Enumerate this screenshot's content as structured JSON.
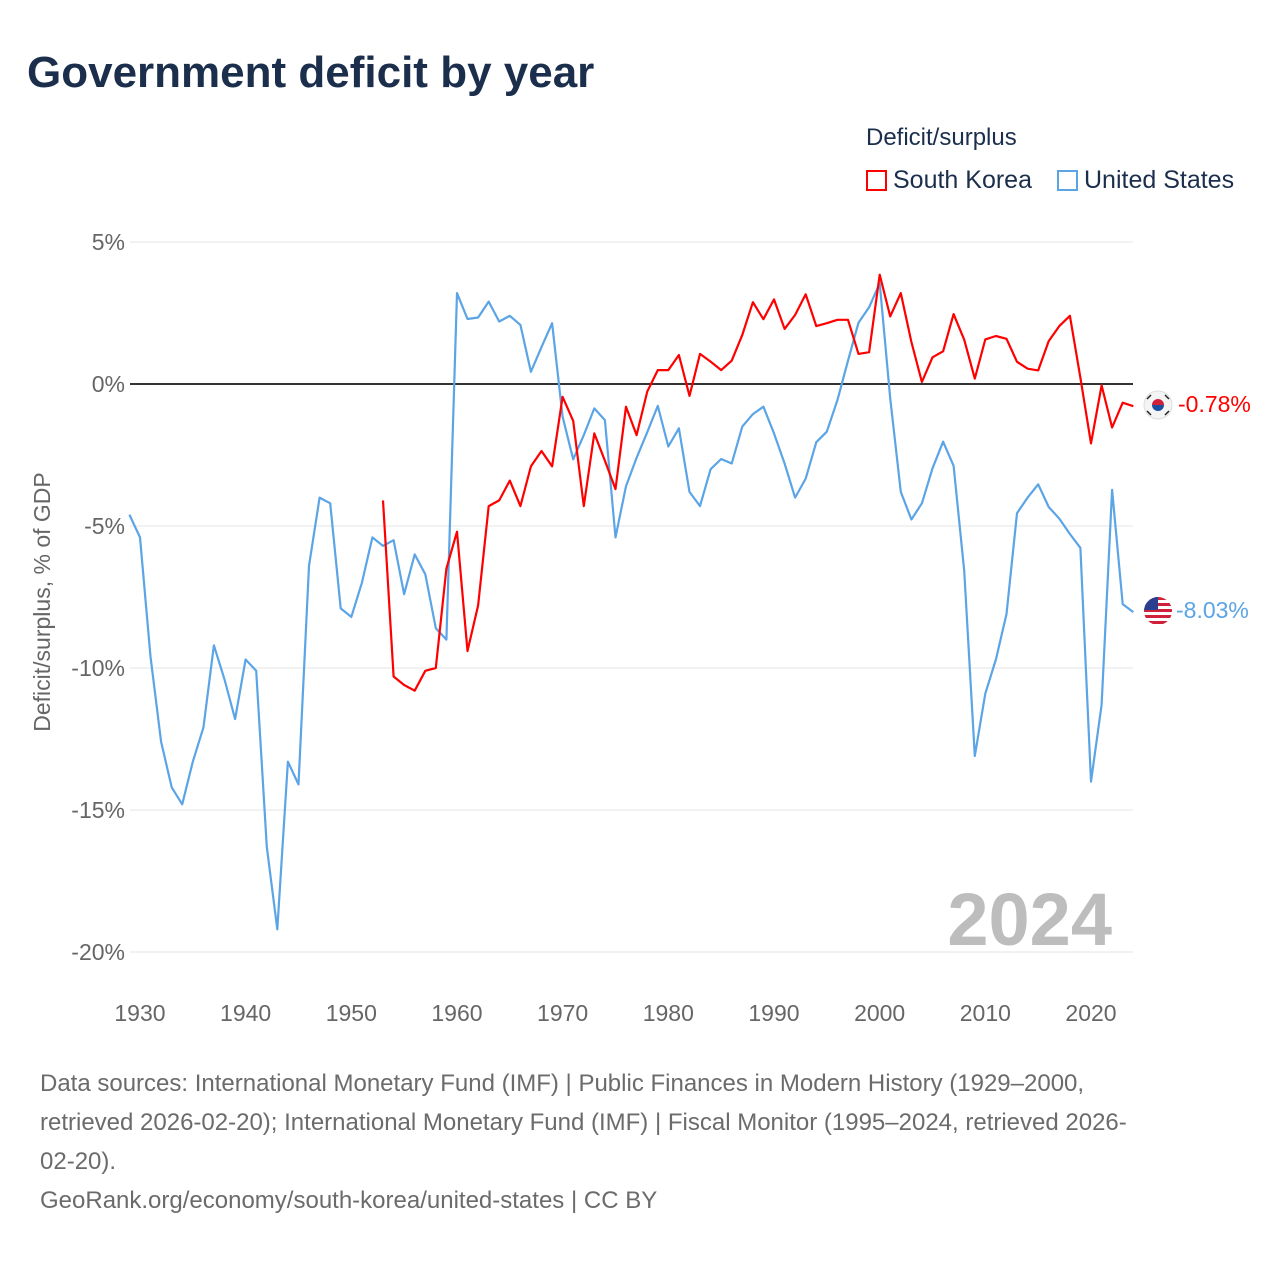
{
  "title": "Government deficit by year",
  "legend": {
    "title": "Deficit/surplus",
    "items": [
      {
        "label": "South Korea",
        "color": "#ff0000"
      },
      {
        "label": "United States",
        "color": "#5ba4e6"
      }
    ]
  },
  "year_watermark": "2024",
  "end_labels": [
    "-0.78%",
    "-8.03%"
  ],
  "footer": {
    "lines": [
      "Data sources: International Monetary Fund (IMF) | Public Finances in Modern History (1929–2000,",
      "retrieved 2026-02-20); International Monetary Fund (IMF) | Fiscal Monitor (1995–2024, retrieved 2026-",
      "02-20).",
      "GeoRank.org/economy/south-korea/united-states | CC BY"
    ]
  },
  "chart_data": {
    "type": "line",
    "title": "Government deficit by year",
    "xlabel": "",
    "ylabel": "Deficit/surplus, % of GDP",
    "xlim": [
      1929,
      2024
    ],
    "ylim": [
      -20,
      5
    ],
    "xticks": [
      1930,
      1940,
      1950,
      1960,
      1970,
      1980,
      1990,
      2000,
      2010,
      2020
    ],
    "xtick_labels": [
      "1930",
      "1940",
      "1950",
      "1960",
      "1970",
      "1980",
      "1990",
      "2000",
      "2010",
      "2020"
    ],
    "yticks": [
      5,
      0,
      -5,
      -10,
      -15,
      -20
    ],
    "ytick_labels": [
      "5%",
      "0%",
      "-5%",
      "-10%",
      "-15%",
      "-20%"
    ],
    "grid": true,
    "legend_position": "top-right",
    "series": [
      {
        "name": "South Korea",
        "color": "#ff0000",
        "start_year": 1953,
        "values": [
          -4.1,
          -10.3,
          -10.6,
          -10.8,
          -10.1,
          -10.0,
          -6.5,
          -5.2,
          -9.4,
          -7.8,
          -4.3,
          -4.1,
          -3.4,
          -4.3,
          -2.9,
          -2.36,
          -2.9,
          -0.45,
          -1.3,
          -4.3,
          -1.74,
          -2.7,
          -3.7,
          -0.8,
          -1.8,
          -0.27,
          0.49,
          0.49,
          1.02,
          -0.42,
          1.06,
          0.79,
          0.49,
          0.82,
          1.73,
          2.88,
          2.28,
          2.98,
          1.94,
          2.43,
          3.16,
          2.04,
          2.14,
          2.26,
          2.26,
          1.06,
          1.12,
          3.85,
          2.38,
          3.2,
          1.48,
          0.07,
          0.94,
          1.15,
          2.46,
          1.56,
          0.19,
          1.57,
          1.69,
          1.59,
          0.78,
          0.54,
          0.48,
          1.51,
          2.04,
          2.4,
          0.22,
          -2.09,
          -0.05,
          -1.53,
          -0.66,
          -0.78
        ]
      },
      {
        "name": "United States",
        "color": "#5ba4e6",
        "start_year": 1929,
        "values": [
          -4.6,
          -5.4,
          -9.6,
          -12.6,
          -14.2,
          -14.8,
          -13.3,
          -12.1,
          -9.2,
          -10.4,
          -11.8,
          -9.7,
          -10.1,
          -16.3,
          -19.2,
          -13.3,
          -14.1,
          -6.4,
          -4.0,
          -4.2,
          -7.9,
          -8.2,
          -7.0,
          -5.4,
          -5.7,
          -5.5,
          -7.4,
          -6.0,
          -6.7,
          -8.6,
          -9.0,
          3.2,
          2.29,
          2.34,
          2.9,
          2.2,
          2.4,
          2.08,
          0.43,
          1.3,
          2.14,
          -1.15,
          -2.65,
          -1.8,
          -0.86,
          -1.27,
          -5.4,
          -3.6,
          -2.6,
          -1.7,
          -0.77,
          -2.2,
          -1.56,
          -3.8,
          -4.3,
          -3.0,
          -2.64,
          -2.8,
          -1.5,
          -1.06,
          -0.8,
          -1.74,
          -2.8,
          -4.0,
          -3.33,
          -2.05,
          -1.68,
          -0.57,
          0.82,
          2.16,
          2.7,
          3.55,
          -0.5,
          -3.8,
          -4.77,
          -4.2,
          -2.97,
          -2.03,
          -2.88,
          -6.57,
          -13.1,
          -10.9,
          -9.7,
          -8.1,
          -4.55,
          -4.0,
          -3.53,
          -4.33,
          -4.74,
          -5.28,
          -5.77,
          -14.0,
          -11.3,
          -3.73,
          -7.75,
          -8.03
        ]
      }
    ]
  }
}
